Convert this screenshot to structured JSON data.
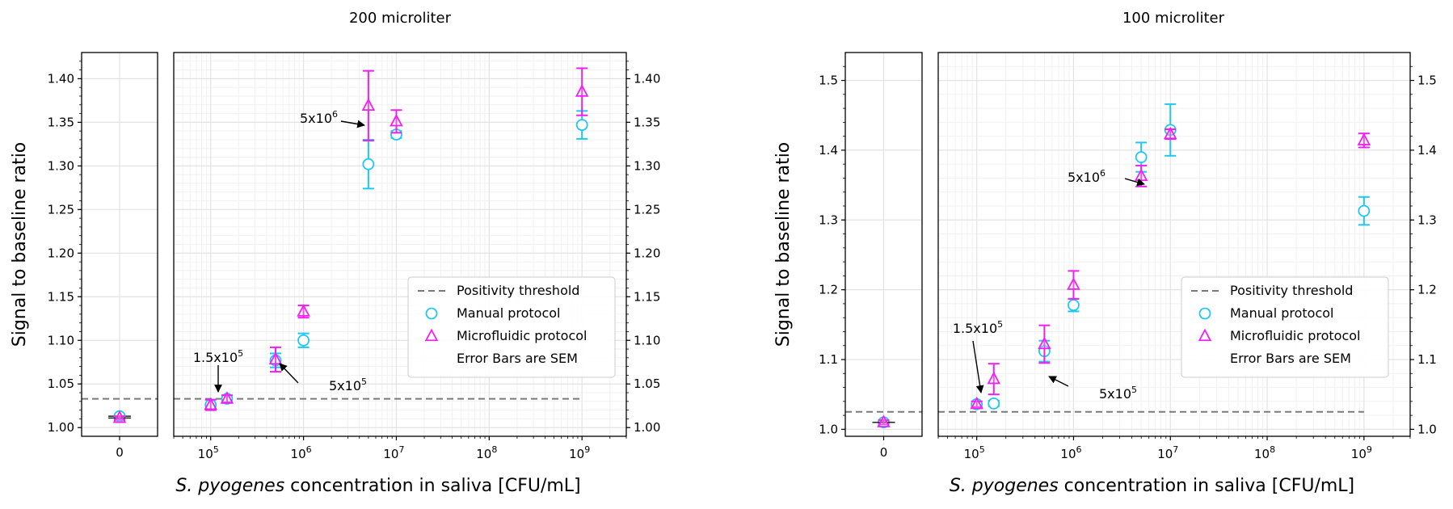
{
  "figure": {
    "xlabel_italic": "S. pyogenes",
    "xlabel_rest": " concentration in saliva [CFU/mL]",
    "ylabel": "Signal to baseline ratio"
  },
  "legend": {
    "threshold": "Positivity threshold",
    "manual": "Manual protocol",
    "micro": "Microfluidic protocol",
    "note": "Error Bars are SEM"
  },
  "colors": {
    "manual": "#1ec8f0",
    "micro": "#f020f0",
    "threshold": "#7a7a7a",
    "grid": "#e3e3e3",
    "minorgrid": "#f1f1f1"
  },
  "chart_data": [
    {
      "type": "scatter",
      "title": "200 microliter",
      "ylabel": "Signal to baseline ratio",
      "xlabel": "S. pyogenes concentration in saliva [CFU/mL]",
      "x_scale": "log",
      "xlim": [
        40000,
        3000000000
      ],
      "ylim": [
        0.99,
        1.43
      ],
      "yticks": [
        1.0,
        1.05,
        1.1,
        1.15,
        1.2,
        1.25,
        1.3,
        1.35,
        1.4
      ],
      "ytick_labels": [
        "1.00",
        "1.05",
        "1.10",
        "1.15",
        "1.20",
        "1.25",
        "1.30",
        "1.35",
        "1.40"
      ],
      "xticks": [
        {
          "base": "10",
          "exp": "5",
          "v": 100000
        },
        {
          "base": "10",
          "exp": "6",
          "v": 1000000
        },
        {
          "base": "10",
          "exp": "7",
          "v": 10000000
        },
        {
          "base": "10",
          "exp": "8",
          "v": 100000000
        },
        {
          "base": "10",
          "exp": "9",
          "v": 1000000000
        }
      ],
      "zero_tick": "0",
      "threshold": 1.033,
      "legend_position": "lower-right",
      "grid": true,
      "series": [
        {
          "name": "Manual protocol",
          "marker": "circle",
          "zero": {
            "y": 1.013,
            "err": 0.002
          },
          "points": [
            {
              "x": 100000,
              "y": 1.026,
              "err": 0.006
            },
            {
              "x": 150000,
              "y": 1.033,
              "err": 0.004
            },
            {
              "x": 500000,
              "y": 1.077,
              "err": 0.008
            },
            {
              "x": 1000000,
              "y": 1.1,
              "err": 0.008
            },
            {
              "x": 5000000,
              "y": 1.302,
              "err": 0.028
            },
            {
              "x": 10000000,
              "y": 1.336,
              "err": 0.004
            },
            {
              "x": 1000000000,
              "y": 1.347,
              "err": 0.016
            }
          ]
        },
        {
          "name": "Microfluidic protocol",
          "marker": "triangle",
          "zero": {
            "y": 1.011,
            "err": 0.002
          },
          "points": [
            {
              "x": 100000,
              "y": 1.026,
              "err": 0.006
            },
            {
              "x": 150000,
              "y": 1.033,
              "err": 0.004
            },
            {
              "x": 500000,
              "y": 1.078,
              "err": 0.014
            },
            {
              "x": 1000000,
              "y": 1.133,
              "err": 0.007
            },
            {
              "x": 5000000,
              "y": 1.369,
              "err": 0.04
            },
            {
              "x": 10000000,
              "y": 1.351,
              "err": 0.013
            },
            {
              "x": 1000000000,
              "y": 1.385,
              "err": 0.027
            }
          ]
        }
      ],
      "annotations": [
        {
          "base": "1.5x10",
          "exp": "5"
        },
        {
          "base": "5x10",
          "exp": "5"
        },
        {
          "base": "5x10",
          "exp": "6"
        }
      ]
    },
    {
      "type": "scatter",
      "title": "100 microliter",
      "ylabel": "Signal to baseline ratio",
      "xlabel": "S. pyogenes concentration in saliva [CFU/mL]",
      "x_scale": "log",
      "xlim": [
        40000,
        3000000000
      ],
      "ylim": [
        0.99,
        1.54
      ],
      "yticks": [
        1.0,
        1.1,
        1.2,
        1.3,
        1.4,
        1.5
      ],
      "ytick_labels": [
        "1.0",
        "1.1",
        "1.2",
        "1.3",
        "1.4",
        "1.5"
      ],
      "xticks": [
        {
          "base": "10",
          "exp": "5",
          "v": 100000
        },
        {
          "base": "10",
          "exp": "6",
          "v": 1000000
        },
        {
          "base": "10",
          "exp": "7",
          "v": 10000000
        },
        {
          "base": "10",
          "exp": "8",
          "v": 100000000
        },
        {
          "base": "10",
          "exp": "9",
          "v": 1000000000
        }
      ],
      "zero_tick": "0",
      "threshold": 1.025,
      "legend_position": "lower-right",
      "grid": true,
      "series": [
        {
          "name": "Manual protocol",
          "marker": "circle",
          "zero": {
            "y": 1.01,
            "err": 0.003
          },
          "points": [
            {
              "x": 100000,
              "y": 1.036,
              "err": 0.004
            },
            {
              "x": 150000,
              "y": 1.037,
              "err": 0.004
            },
            {
              "x": 500000,
              "y": 1.112,
              "err": 0.015
            },
            {
              "x": 1000000,
              "y": 1.178,
              "err": 0.009
            },
            {
              "x": 5000000,
              "y": 1.39,
              "err": 0.021
            },
            {
              "x": 10000000,
              "y": 1.429,
              "err": 0.037
            },
            {
              "x": 1000000000,
              "y": 1.313,
              "err": 0.02
            }
          ]
        },
        {
          "name": "Microfluidic protocol",
          "marker": "triangle",
          "zero": {
            "y": 1.01,
            "err": 0.003
          },
          "points": [
            {
              "x": 100000,
              "y": 1.036,
              "err": 0.004
            },
            {
              "x": 150000,
              "y": 1.072,
              "err": 0.022
            },
            {
              "x": 500000,
              "y": 1.122,
              "err": 0.027
            },
            {
              "x": 1000000,
              "y": 1.207,
              "err": 0.02
            },
            {
              "x": 5000000,
              "y": 1.363,
              "err": 0.015
            },
            {
              "x": 10000000,
              "y": 1.423,
              "err": 0.007
            },
            {
              "x": 1000000000,
              "y": 1.414,
              "err": 0.01
            }
          ]
        }
      ],
      "annotations": [
        {
          "base": "1.5x10",
          "exp": "5"
        },
        {
          "base": "5x10",
          "exp": "5"
        },
        {
          "base": "5x10",
          "exp": "6"
        }
      ]
    }
  ]
}
